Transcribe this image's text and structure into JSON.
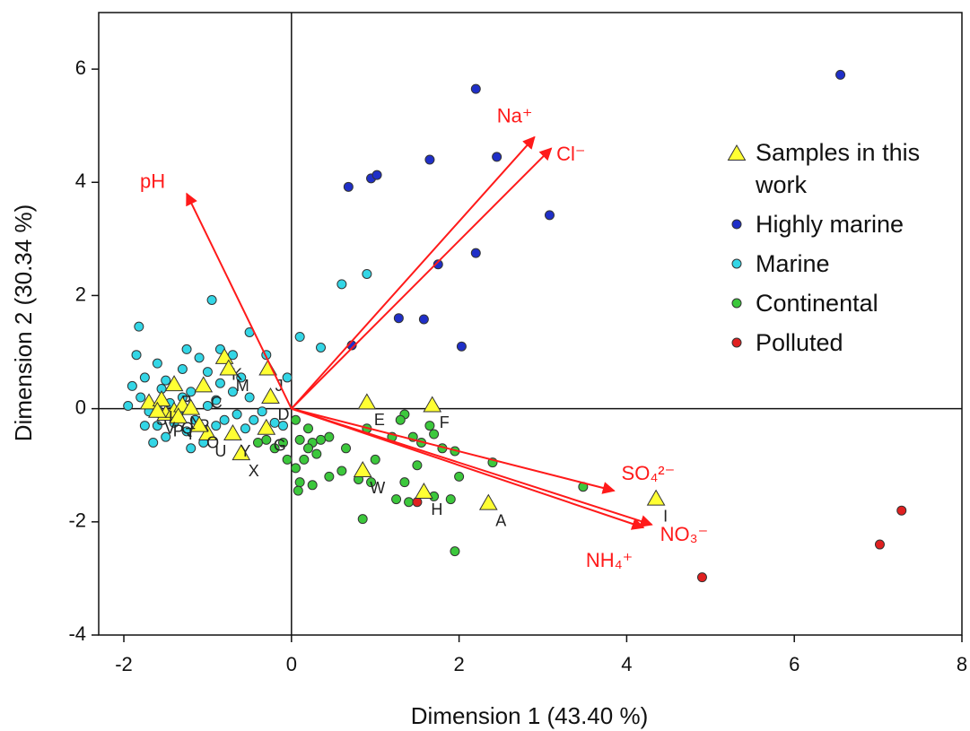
{
  "chart_data": {
    "type": "scatter",
    "xlabel": "Dimension 1 (43.40 %)",
    "ylabel": "Dimension 2 (30.34 %)",
    "xlim": [
      -2.3,
      8
    ],
    "ylim": [
      -4,
      7
    ],
    "xticks": [
      -2,
      0,
      2,
      4,
      6,
      8
    ],
    "yticks": [
      -4,
      -2,
      0,
      2,
      4,
      6
    ],
    "zero_lines": true,
    "legend_position": "right",
    "vector_color": "#ff1a1a",
    "vectors": [
      {
        "name": "pH",
        "x": -1.25,
        "y": 3.8
      },
      {
        "name": "Na⁺",
        "x": 2.9,
        "y": 4.8
      },
      {
        "name": "Cl⁻",
        "x": 3.1,
        "y": 4.6
      },
      {
        "name": "SO₄²⁻",
        "x": 3.85,
        "y": -1.45
      },
      {
        "name": "NO₃⁻",
        "x": 4.3,
        "y": -2.05
      },
      {
        "name": "NH₄⁺",
        "x": 4.2,
        "y": -2.1
      }
    ],
    "series": [
      {
        "name": "Highly marine",
        "color": "#1f2fc8",
        "marker": "circle",
        "x": [
          2.2,
          6.55,
          1.65,
          2.45,
          0.68,
          0.95,
          1.02,
          3.08,
          2.2,
          1.75,
          1.28,
          1.58,
          2.03,
          0.72
        ],
        "y": [
          5.65,
          5.9,
          4.4,
          4.45,
          3.92,
          4.07,
          4.13,
          3.42,
          2.75,
          2.55,
          1.6,
          1.58,
          1.1,
          1.12
        ]
      },
      {
        "name": "Marine",
        "color": "#33d6e6",
        "marker": "circle",
        "x": [
          -1.82,
          -1.85,
          -1.6,
          -1.9,
          -1.75,
          -1.5,
          -1.3,
          -1.2,
          -1.1,
          -0.95,
          -0.85,
          -0.5,
          -0.3,
          -0.05,
          0.1,
          0.35,
          0.6,
          0.9,
          -0.6,
          -0.5,
          -0.7,
          -0.9,
          -1.0,
          -1.15,
          -1.25,
          -1.4,
          -1.6,
          -1.7,
          -1.8,
          -1.55,
          -1.45,
          -1.35,
          -1.05,
          -0.9,
          -0.8,
          -0.65,
          -0.45,
          -0.35,
          -0.2,
          -0.1,
          -1.2,
          -1.5,
          -1.65,
          -1.3,
          -0.85,
          -0.55,
          -1.95,
          -1.75,
          -1.6,
          -1.0,
          -0.7,
          -1.25
        ],
        "y": [
          1.45,
          0.95,
          0.8,
          0.4,
          0.55,
          0.5,
          0.7,
          0.3,
          0.9,
          1.92,
          1.05,
          1.35,
          0.95,
          0.55,
          1.27,
          1.08,
          2.2,
          2.38,
          0.55,
          0.2,
          0.3,
          0.15,
          0.05,
          -0.2,
          -0.4,
          -0.25,
          -0.3,
          -0.05,
          0.2,
          0.35,
          0.1,
          -0.1,
          -0.6,
          -0.3,
          -0.2,
          -0.1,
          -0.2,
          -0.05,
          -0.25,
          -0.3,
          -0.7,
          -0.5,
          -0.6,
          0.2,
          0.45,
          -0.35,
          0.05,
          -0.3,
          0.0,
          0.65,
          0.95,
          1.05
        ]
      },
      {
        "name": "Continental",
        "color": "#3cc83c",
        "marker": "circle",
        "x": [
          0.05,
          0.1,
          0.15,
          0.25,
          0.3,
          0.35,
          0.45,
          0.05,
          0.1,
          0.08,
          0.25,
          0.45,
          0.6,
          0.8,
          0.95,
          1.25,
          1.35,
          1.4,
          1.5,
          1.35,
          1.2,
          1.45,
          1.7,
          1.8,
          1.95,
          2.0,
          1.9,
          1.95,
          0.85,
          0.9,
          2.4,
          3.48,
          -0.3,
          -0.2,
          -0.1,
          0.2,
          -0.05,
          1.3,
          1.55,
          1.7,
          1.0,
          0.65,
          -0.4,
          1.65,
          0.2
        ],
        "y": [
          -0.2,
          -0.55,
          -0.9,
          -0.6,
          -0.8,
          -0.55,
          -0.5,
          -1.05,
          -1.3,
          -1.45,
          -1.35,
          -1.2,
          -1.1,
          -1.25,
          -1.3,
          -1.6,
          -1.3,
          -1.65,
          -1.0,
          -0.1,
          -0.5,
          -0.5,
          -0.45,
          -0.7,
          -0.75,
          -1.2,
          -1.6,
          -2.52,
          -1.95,
          -0.35,
          -0.95,
          -1.38,
          -0.55,
          -0.7,
          -0.6,
          -0.7,
          -0.9,
          -0.2,
          -0.6,
          -1.55,
          -0.9,
          -0.7,
          -0.6,
          -0.3,
          -0.35
        ]
      },
      {
        "name": "Polluted",
        "color": "#e02020",
        "marker": "circle",
        "x": [
          4.9,
          7.02,
          7.28,
          1.5
        ],
        "y": [
          -2.98,
          -2.4,
          -1.8,
          -1.65
        ]
      },
      {
        "name": "Samples in this work",
        "color": "#ffff33",
        "marker": "triangle",
        "x": [
          2.35,
          4.35,
          1.58,
          0.85,
          0.9,
          1.68,
          -0.8,
          -0.75,
          -0.28,
          -0.25,
          -0.3,
          -0.6,
          -1.0,
          -0.7,
          -1.05,
          -1.4,
          -1.7,
          -1.5,
          -1.4,
          -1.3,
          -1.2,
          -1.55,
          -1.1,
          -1.35,
          -1.6
        ],
        "y": [
          -1.68,
          -1.6,
          -1.48,
          -1.1,
          0.1,
          0.05,
          0.9,
          0.7,
          0.7,
          0.2,
          -0.35,
          -0.8,
          -0.45,
          -0.45,
          0.4,
          0.42,
          0.1,
          -0.1,
          -0.05,
          0.05,
          0.0,
          0.15,
          -0.3,
          -0.15,
          -0.05
        ],
        "labels": [
          "A",
          "I",
          "H",
          "W",
          "E",
          "F",
          "K",
          "M",
          "J",
          "D",
          "G",
          "X",
          "U",
          "Y",
          "C",
          "B",
          "S",
          "P",
          "Q",
          "N",
          "R",
          "L",
          "O",
          "T",
          "V"
        ]
      }
    ],
    "legend_order": [
      4,
      0,
      1,
      2,
      3
    ]
  }
}
